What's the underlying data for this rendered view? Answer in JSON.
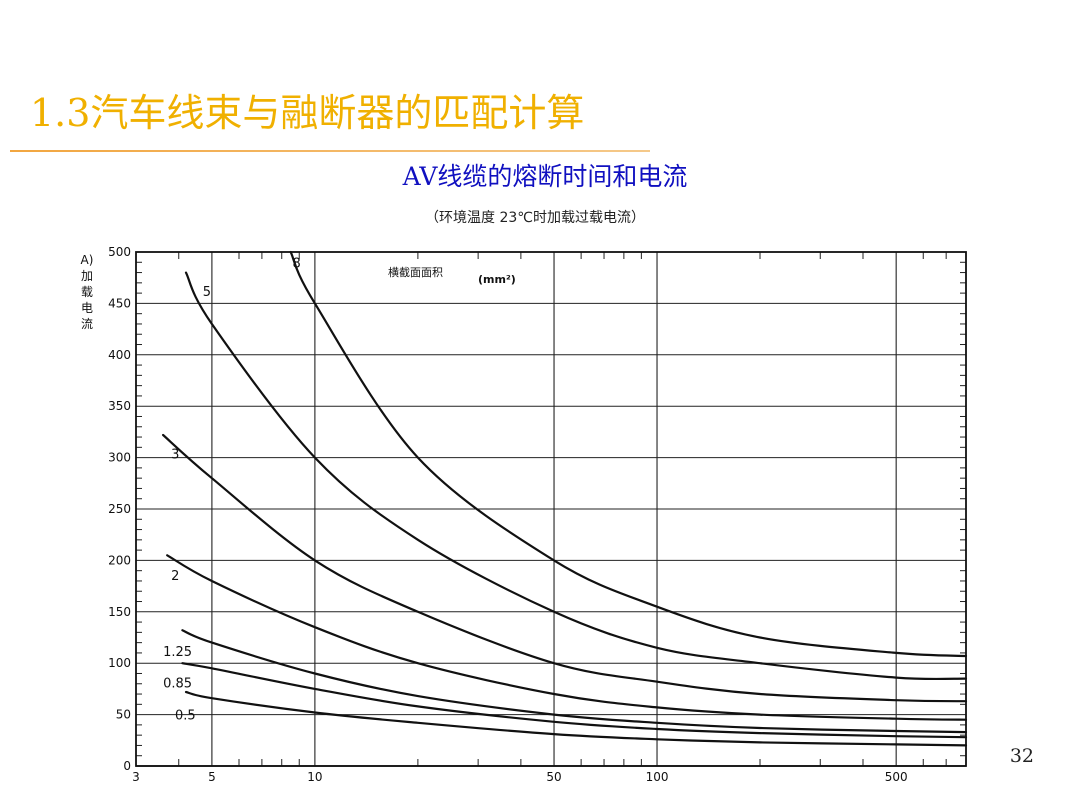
{
  "slide": {
    "title": "1.3汽车线束与融断器的匹配计算",
    "page_number": "32"
  },
  "chart_data": {
    "type": "line",
    "title": "AV线缆的熔断时间和电流",
    "subtitle": "（环境温度 23℃时加载过载电流）",
    "ylabel_lines": [
      "A)",
      "加",
      "载",
      "电",
      "流"
    ],
    "legend_label": "横截面面积",
    "legend_unit": "(mm²)",
    "x_scale": "log",
    "xlim": [
      3,
      800
    ],
    "ylim": [
      0,
      500
    ],
    "grid": true,
    "x_ticks": [
      3,
      5,
      10,
      50,
      100,
      500
    ],
    "y_ticks": [
      0,
      50,
      100,
      150,
      200,
      250,
      300,
      350,
      400,
      450,
      500
    ],
    "series": [
      {
        "name": "8",
        "label_at": [
          8.6,
          490
        ],
        "points": [
          [
            8.5,
            500
          ],
          [
            10,
            450
          ],
          [
            20,
            300
          ],
          [
            50,
            200
          ],
          [
            100,
            155
          ],
          [
            200,
            125
          ],
          [
            500,
            110
          ],
          [
            800,
            107
          ]
        ]
      },
      {
        "name": "5",
        "label_at": [
          4.7,
          462
        ],
        "points": [
          [
            4.2,
            480
          ],
          [
            5,
            430
          ],
          [
            10,
            300
          ],
          [
            20,
            220
          ],
          [
            50,
            150
          ],
          [
            100,
            115
          ],
          [
            200,
            100
          ],
          [
            500,
            86
          ],
          [
            800,
            85
          ]
        ]
      },
      {
        "name": "3",
        "label_at": [
          3.8,
          304
        ],
        "points": [
          [
            3.6,
            322
          ],
          [
            5,
            280
          ],
          [
            10,
            200
          ],
          [
            20,
            150
          ],
          [
            50,
            100
          ],
          [
            100,
            82
          ],
          [
            200,
            70
          ],
          [
            500,
            64
          ],
          [
            800,
            63
          ]
        ]
      },
      {
        "name": "2",
        "label_at": [
          3.8,
          186
        ],
        "points": [
          [
            3.7,
            205
          ],
          [
            5,
            180
          ],
          [
            10,
            135
          ],
          [
            20,
            100
          ],
          [
            50,
            70
          ],
          [
            100,
            57
          ],
          [
            200,
            50
          ],
          [
            500,
            46
          ],
          [
            800,
            45
          ]
        ]
      },
      {
        "name": "1.25",
        "label_at": [
          3.6,
          112
        ],
        "points": [
          [
            4.1,
            132
          ],
          [
            5,
            120
          ],
          [
            10,
            90
          ],
          [
            20,
            68
          ],
          [
            50,
            50
          ],
          [
            100,
            42
          ],
          [
            200,
            37
          ],
          [
            500,
            34
          ],
          [
            800,
            33
          ]
        ]
      },
      {
        "name": "0.85",
        "label_at": [
          3.6,
          81
        ],
        "points": [
          [
            4.1,
            100
          ],
          [
            5,
            95
          ],
          [
            10,
            75
          ],
          [
            20,
            58
          ],
          [
            50,
            43
          ],
          [
            100,
            36
          ],
          [
            200,
            32
          ],
          [
            500,
            29
          ],
          [
            800,
            28
          ]
        ]
      },
      {
        "name": "0.5",
        "label_at": [
          3.9,
          50
        ],
        "points": [
          [
            4.2,
            72
          ],
          [
            5,
            66
          ],
          [
            10,
            52
          ],
          [
            20,
            42
          ],
          [
            50,
            31
          ],
          [
            100,
            26
          ],
          [
            200,
            23
          ],
          [
            500,
            21
          ],
          [
            800,
            20
          ]
        ]
      }
    ]
  }
}
